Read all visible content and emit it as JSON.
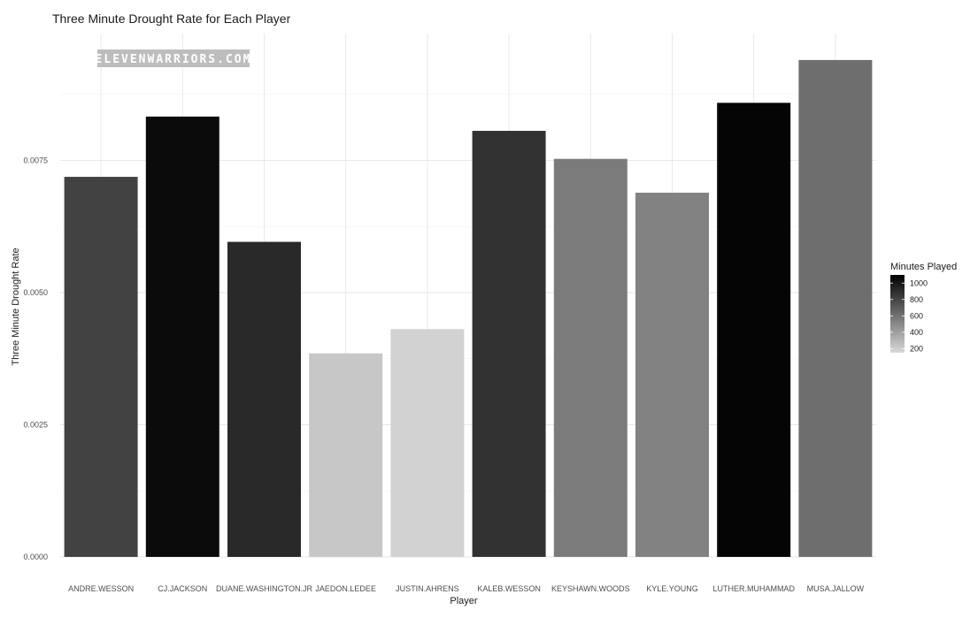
{
  "chart_data": {
    "type": "bar",
    "title": "Three Minute Drought Rate for Each Player",
    "xlabel": "Player",
    "ylabel": "Three Minute Drought Rate",
    "categories": [
      "ANDRE.WESSON",
      "CJ.JACKSON",
      "DUANE.WASHINGTON.JR",
      "JAEDON.LEDEE",
      "JUSTIN.AHRENS",
      "KALEB.WESSON",
      "KEYSHAWN.WOODS",
      "KYLE.YOUNG",
      "LUTHER.MUHAMMAD",
      "MUSA.JALLOW"
    ],
    "values": [
      0.00719,
      0.00833,
      0.00596,
      0.00385,
      0.00431,
      0.00806,
      0.00753,
      0.00689,
      0.00859,
      0.0094
    ],
    "minutes_played": [
      810,
      1050,
      920,
      230,
      180,
      880,
      560,
      530,
      1080,
      620
    ],
    "ylim": [
      0,
      0.0099
    ],
    "yticks": [
      0,
      0.0025,
      0.005,
      0.0075
    ],
    "ytick_labels": [
      "0.0000",
      "0.0025",
      "0.0050",
      "0.0075"
    ],
    "grid": true,
    "legend": {
      "title": "Minutes Played",
      "position": "right",
      "ticks": [
        1000,
        800,
        600,
        400,
        200
      ],
      "range": [
        150,
        1100
      ],
      "color_high": "#000000",
      "color_low": "#d9d9d9"
    }
  },
  "watermark": {
    "text": "ELEVENWARRIORS.COM"
  }
}
